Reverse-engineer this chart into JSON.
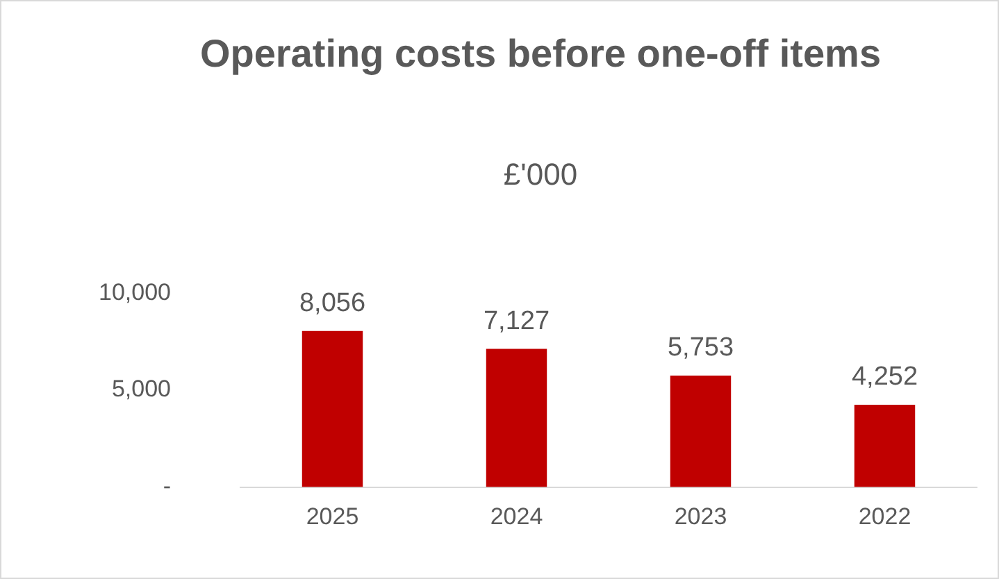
{
  "chart_data": {
    "type": "bar",
    "title": "Operating costs before one-off items",
    "subtitle": "£'000",
    "categories": [
      "2025",
      "2024",
      "2023",
      "2022"
    ],
    "values": [
      8056,
      7127,
      5753,
      4252
    ],
    "value_labels": [
      "8,056",
      "7,127",
      "5,753",
      "4,252"
    ],
    "color": "#c00000",
    "ylim": [
      0,
      10000
    ],
    "yticks": [
      {
        "value": 0,
        "label": "-"
      },
      {
        "value": 5000,
        "label": "5,000"
      },
      {
        "value": 10000,
        "label": "10,000"
      }
    ],
    "grid": false,
    "legend": false
  }
}
